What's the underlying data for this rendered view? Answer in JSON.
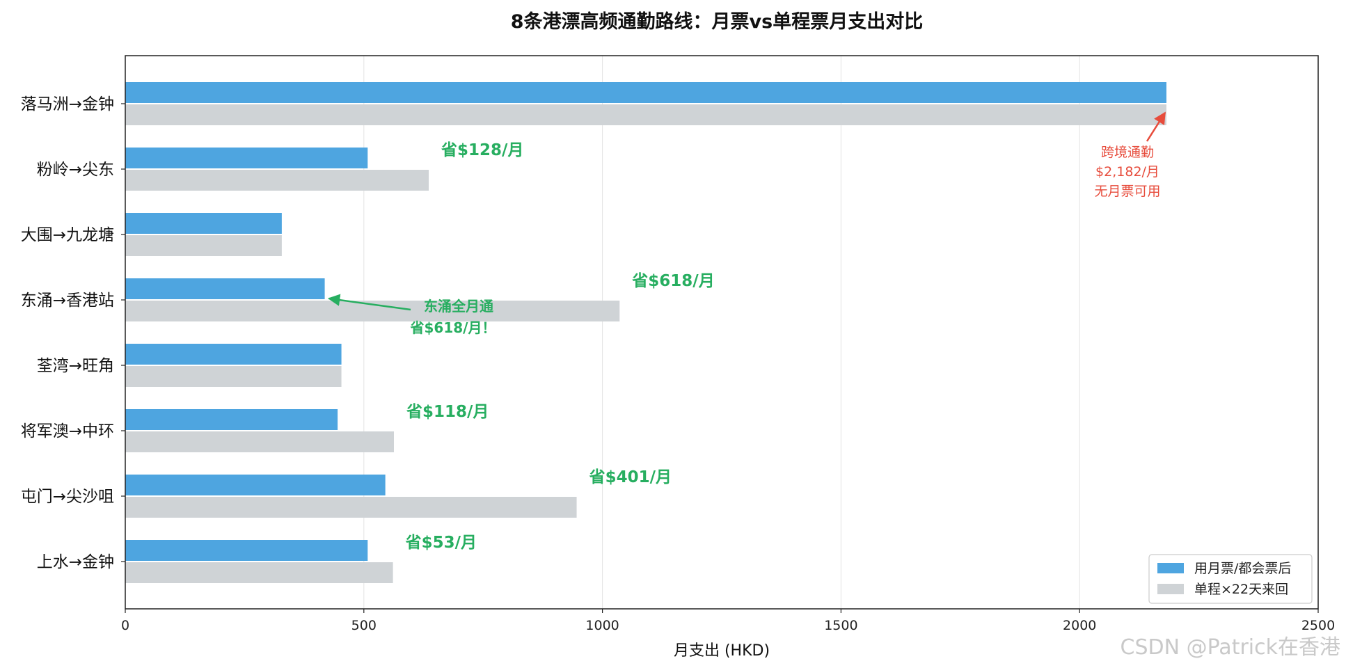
{
  "chart_data": {
    "type": "bar",
    "orientation": "horizontal",
    "title": "8条港漂高频通勤路线：月票vs单程票月支出对比",
    "xlabel": "月支出 (HKD)",
    "ylabel": "",
    "xlim": [
      0,
      2500
    ],
    "xticks": [
      0,
      500,
      1000,
      1500,
      2000,
      2500
    ],
    "grid": "vertical",
    "legend_position": "bottom-right",
    "categories": [
      "落马洲→金钟",
      "粉岭→尖东",
      "大围→九龙塘",
      "东涌→香港站",
      "荃湾→旺角",
      "将军澳→中环",
      "屯门→尖沙咀",
      "上水→金钟"
    ],
    "series": [
      {
        "name": "用月票/都会票后",
        "color": "#4ea5e0",
        "values": [
          2182,
          508,
          328,
          418,
          453,
          445,
          545,
          508
        ]
      },
      {
        "name": "单程×22天来回",
        "color": "#cfd3d6",
        "values": [
          2182,
          636,
          328,
          1036,
          453,
          563,
          946,
          561
        ]
      }
    ],
    "savings_labels": [
      "",
      "省$128/月",
      "",
      "省$618/月",
      "",
      "省$118/月",
      "省$401/月",
      "省$53/月"
    ],
    "savings_color": "#27ae60",
    "annotations": [
      {
        "lines": [
          "跨境通勤",
          "$2,182/月",
          "无月票可用"
        ],
        "color": "#e74c3c",
        "target_category": "落马洲→金钟"
      },
      {
        "lines": [
          "东涌全月通",
          "省$618/月！"
        ],
        "color": "#27ae60",
        "target_category": "东涌→香港站"
      }
    ]
  },
  "watermark": "CSDN @Patrick在香港"
}
